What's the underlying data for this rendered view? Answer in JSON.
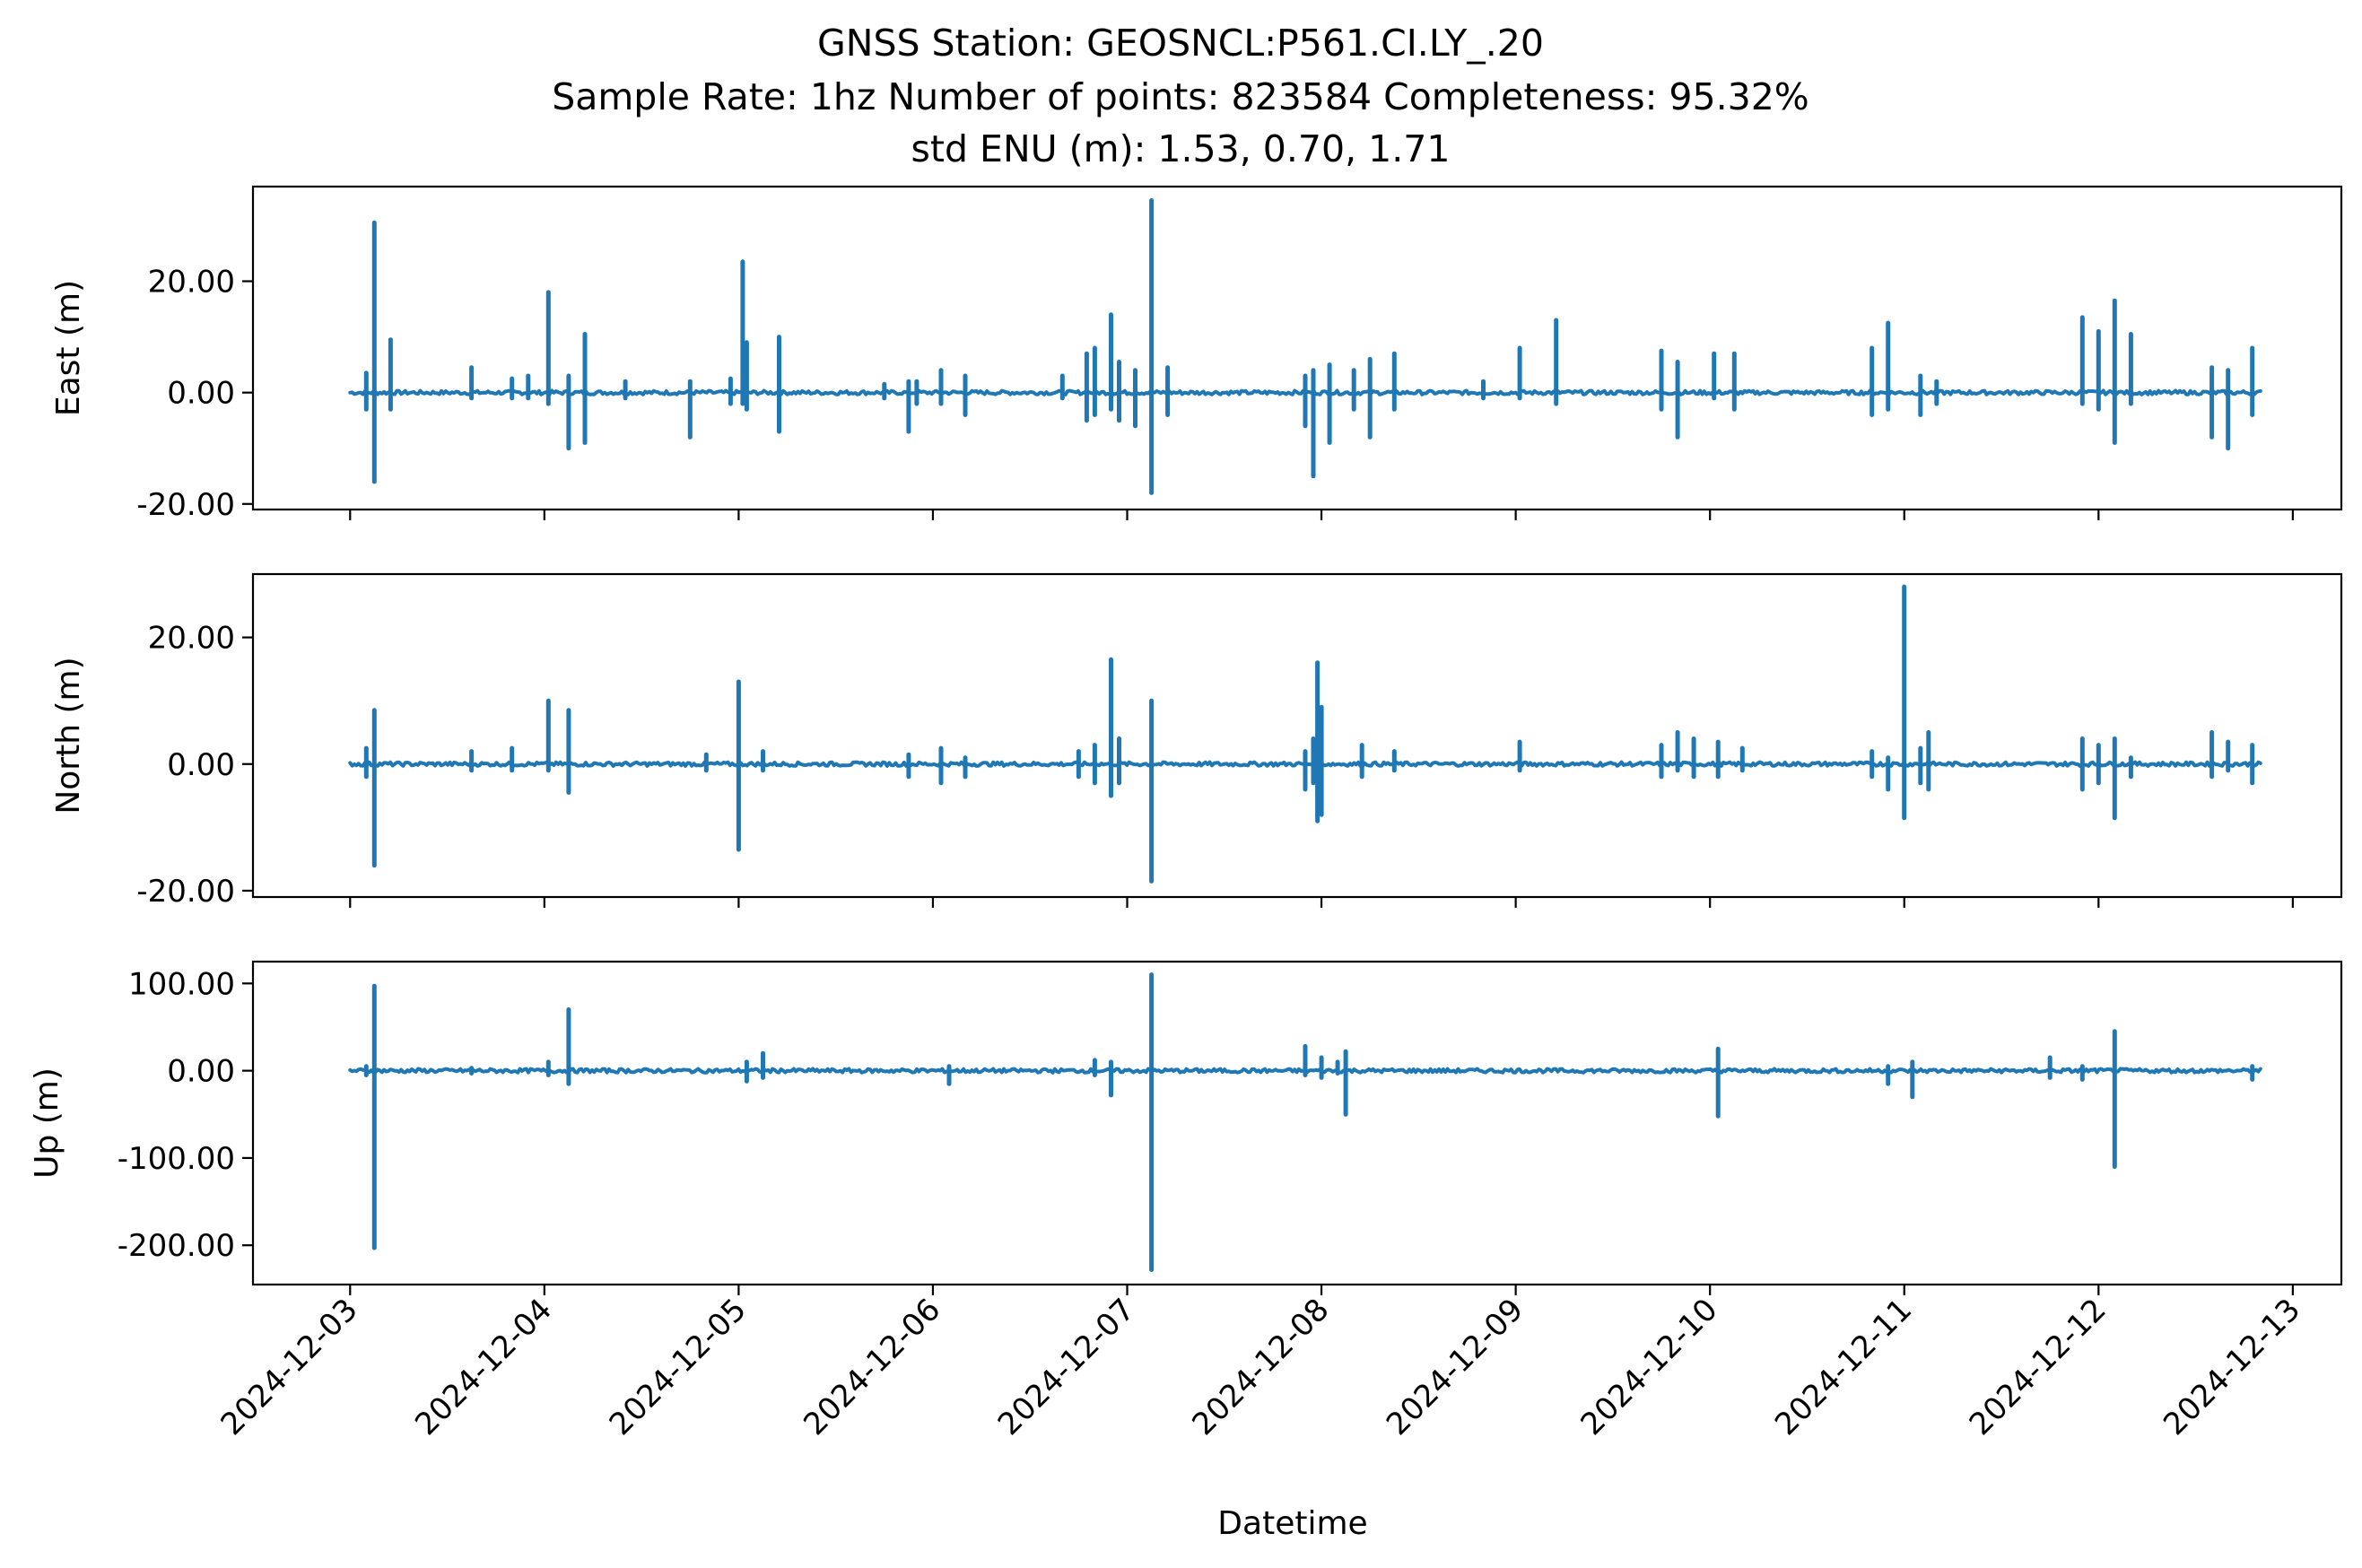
{
  "figure": {
    "title_lines": [
      "GNSS Station: GEOSNCL:P561.CI.LY_.20",
      "Sample Rate: 1hz   Number of points: 823584    Completeness:  95.32%",
      "std ENU (m):  1.53, 0.70, 1.71"
    ],
    "xlabel": "Datetime",
    "line_color": "#1f77b4"
  },
  "chart_data": [
    {
      "type": "line",
      "ylabel": "East (m)",
      "xlim": [
        "2024-12-02T12:00",
        "2024-12-13T06:00"
      ],
      "ylim": [
        -21,
        37
      ],
      "yticks": [
        -20,
        0,
        20
      ],
      "ytick_labels": [
        "-20.00",
        "0.00",
        "20.00"
      ],
      "xticks": [
        "2024-12-03",
        "2024-12-04",
        "2024-12-05",
        "2024-12-06",
        "2024-12-07",
        "2024-12-08",
        "2024-12-09",
        "2024-12-10",
        "2024-12-11",
        "2024-12-12",
        "2024-12-13"
      ],
      "xtick_labels_shown": false,
      "x_range": [
        "2024-12-03T00:00",
        "2024-12-12T20:00"
      ],
      "baseline": 0,
      "spikes": [
        {
          "x": "2024-12-03T02:00",
          "min": -3,
          "max": 3.5
        },
        {
          "x": "2024-12-03T03:00",
          "min": -16,
          "max": 30.5
        },
        {
          "x": "2024-12-03T05:00",
          "min": -3,
          "max": 9.5
        },
        {
          "x": "2024-12-03T15:00",
          "min": -1,
          "max": 4.5
        },
        {
          "x": "2024-12-03T20:00",
          "min": -1,
          "max": 2.5
        },
        {
          "x": "2024-12-03T22:00",
          "min": -1,
          "max": 3
        },
        {
          "x": "2024-12-04T00:30",
          "min": -2,
          "max": 18
        },
        {
          "x": "2024-12-04T03:00",
          "min": -10,
          "max": 3
        },
        {
          "x": "2024-12-04T05:00",
          "min": -9,
          "max": 10.5
        },
        {
          "x": "2024-12-04T23:00",
          "min": -2,
          "max": 2.5
        },
        {
          "x": "2024-12-04T10:00",
          "min": -1,
          "max": 2
        },
        {
          "x": "2024-12-04T18:00",
          "min": -8,
          "max": 2
        },
        {
          "x": "2024-12-05T00:30",
          "min": -2,
          "max": 23.5
        },
        {
          "x": "2024-12-05T01:00",
          "min": -3,
          "max": 9
        },
        {
          "x": "2024-12-05T05:00",
          "min": -7,
          "max": 10
        },
        {
          "x": "2024-12-05T22:00",
          "min": -2,
          "max": 2
        },
        {
          "x": "2024-12-05T18:00",
          "min": -1,
          "max": 1.5
        },
        {
          "x": "2024-12-05T21:00",
          "min": -7,
          "max": 2
        },
        {
          "x": "2024-12-06T01:00",
          "min": -2,
          "max": 4
        },
        {
          "x": "2024-12-06T04:00",
          "min": -4,
          "max": 3
        },
        {
          "x": "2024-12-06T16:00",
          "min": -1,
          "max": 3
        },
        {
          "x": "2024-12-06T19:00",
          "min": -5,
          "max": 7
        },
        {
          "x": "2024-12-06T20:00",
          "min": -4,
          "max": 8
        },
        {
          "x": "2024-12-06T22:00",
          "min": -3,
          "max": 14
        },
        {
          "x": "2024-12-06T23:00",
          "min": -5,
          "max": 5.5
        },
        {
          "x": "2024-12-07T01:00",
          "min": -6,
          "max": 4
        },
        {
          "x": "2024-12-07T03:00",
          "min": -18,
          "max": 34.5
        },
        {
          "x": "2024-12-07T05:00",
          "min": -4,
          "max": 4.5
        },
        {
          "x": "2024-12-07T22:00",
          "min": -6,
          "max": 3
        },
        {
          "x": "2024-12-07T23:00",
          "min": -15,
          "max": 4
        },
        {
          "x": "2024-12-08T01:00",
          "min": -9,
          "max": 5
        },
        {
          "x": "2024-12-08T04:00",
          "min": -3,
          "max": 4
        },
        {
          "x": "2024-12-08T06:00",
          "min": -8,
          "max": 6
        },
        {
          "x": "2024-12-08T09:00",
          "min": -3,
          "max": 7
        },
        {
          "x": "2024-12-08T20:00",
          "min": -1,
          "max": 2
        },
        {
          "x": "2024-12-09T00:30",
          "min": -1,
          "max": 8
        },
        {
          "x": "2024-12-09T05:00",
          "min": -2,
          "max": 13
        },
        {
          "x": "2024-12-09T18:00",
          "min": -3,
          "max": 7.5
        },
        {
          "x": "2024-12-09T20:00",
          "min": -8,
          "max": 5.5
        },
        {
          "x": "2024-12-10T00:30",
          "min": -1,
          "max": 7
        },
        {
          "x": "2024-12-10T03:00",
          "min": -3,
          "max": 7
        },
        {
          "x": "2024-12-10T20:00",
          "min": -4,
          "max": 8
        },
        {
          "x": "2024-12-10T22:00",
          "min": -3,
          "max": 12.5
        },
        {
          "x": "2024-12-11T02:00",
          "min": -4,
          "max": 3
        },
        {
          "x": "2024-12-11T04:00",
          "min": -2,
          "max": 2
        },
        {
          "x": "2024-12-11T22:00",
          "min": -2,
          "max": 13.5
        },
        {
          "x": "2024-12-12T00:00",
          "min": -3,
          "max": 11
        },
        {
          "x": "2024-12-12T02:00",
          "min": -9,
          "max": 16.5
        },
        {
          "x": "2024-12-12T04:00",
          "min": -2,
          "max": 10.5
        },
        {
          "x": "2024-12-12T14:00",
          "min": -8,
          "max": 4.5
        },
        {
          "x": "2024-12-12T16:00",
          "min": -10,
          "max": 4
        },
        {
          "x": "2024-12-12T19:00",
          "min": -4,
          "max": 8
        }
      ]
    },
    {
      "type": "line",
      "ylabel": "North (m)",
      "xlim": [
        "2024-12-02T12:00",
        "2024-12-13T06:00"
      ],
      "ylim": [
        -21,
        30
      ],
      "yticks": [
        -20,
        0,
        20
      ],
      "ytick_labels": [
        "-20.00",
        "0.00",
        "20.00"
      ],
      "xticks": [
        "2024-12-03",
        "2024-12-04",
        "2024-12-05",
        "2024-12-06",
        "2024-12-07",
        "2024-12-08",
        "2024-12-09",
        "2024-12-10",
        "2024-12-11",
        "2024-12-12",
        "2024-12-13"
      ],
      "xtick_labels_shown": false,
      "x_range": [
        "2024-12-03T00:00",
        "2024-12-12T20:00"
      ],
      "baseline": 0,
      "spikes": [
        {
          "x": "2024-12-03T02:00",
          "min": -2,
          "max": 2.5
        },
        {
          "x": "2024-12-03T03:00",
          "min": -16,
          "max": 8.5
        },
        {
          "x": "2024-12-03T15:00",
          "min": -1,
          "max": 2
        },
        {
          "x": "2024-12-03T20:00",
          "min": -1,
          "max": 2.5
        },
        {
          "x": "2024-12-04T00:30",
          "min": -1,
          "max": 10
        },
        {
          "x": "2024-12-04T03:00",
          "min": -4.5,
          "max": 8.5
        },
        {
          "x": "2024-12-04T20:00",
          "min": -1,
          "max": 1.5
        },
        {
          "x": "2024-12-05T00:00",
          "min": -13.5,
          "max": 13
        },
        {
          "x": "2024-12-05T03:00",
          "min": -1,
          "max": 2
        },
        {
          "x": "2024-12-05T21:00",
          "min": -2,
          "max": 1.5
        },
        {
          "x": "2024-12-06T01:00",
          "min": -3,
          "max": 2.5
        },
        {
          "x": "2024-12-06T04:00",
          "min": -2,
          "max": 1
        },
        {
          "x": "2024-12-06T18:00",
          "min": -2,
          "max": 2
        },
        {
          "x": "2024-12-06T20:00",
          "min": -3,
          "max": 3
        },
        {
          "x": "2024-12-06T22:00",
          "min": -5,
          "max": 16.5
        },
        {
          "x": "2024-12-06T23:00",
          "min": -3,
          "max": 4
        },
        {
          "x": "2024-12-07T03:00",
          "min": -18.5,
          "max": 10
        },
        {
          "x": "2024-12-07T22:00",
          "min": -4,
          "max": 2
        },
        {
          "x": "2024-12-07T23:00",
          "min": -3,
          "max": 4
        },
        {
          "x": "2024-12-08T00:00",
          "min": -8,
          "max": 9
        },
        {
          "x": "2024-12-07T23:30",
          "min": -9,
          "max": 16
        },
        {
          "x": "2024-12-08T05:00",
          "min": -2,
          "max": 3
        },
        {
          "x": "2024-12-08T09:00",
          "min": -1,
          "max": 2
        },
        {
          "x": "2024-12-09T00:30",
          "min": -1,
          "max": 3.5
        },
        {
          "x": "2024-12-09T18:00",
          "min": -2,
          "max": 3
        },
        {
          "x": "2024-12-09T20:00",
          "min": -1,
          "max": 5
        },
        {
          "x": "2024-12-09T22:00",
          "min": -2,
          "max": 4
        },
        {
          "x": "2024-12-10T01:00",
          "min": -2,
          "max": 3.5
        },
        {
          "x": "2024-12-10T04:00",
          "min": -1,
          "max": 2.5
        },
        {
          "x": "2024-12-10T20:00",
          "min": -2,
          "max": 2
        },
        {
          "x": "2024-12-10T22:00",
          "min": -4,
          "max": 1
        },
        {
          "x": "2024-12-11T00:00",
          "min": -8.5,
          "max": 28
        },
        {
          "x": "2024-12-11T02:00",
          "min": -3,
          "max": 2.5
        },
        {
          "x": "2024-12-11T03:00",
          "min": -4,
          "max": 5
        },
        {
          "x": "2024-12-11T22:00",
          "min": -4,
          "max": 4
        },
        {
          "x": "2024-12-12T00:00",
          "min": -3,
          "max": 3
        },
        {
          "x": "2024-12-12T02:00",
          "min": -8.5,
          "max": 4
        },
        {
          "x": "2024-12-12T04:00",
          "min": -2,
          "max": 1
        },
        {
          "x": "2024-12-12T14:00",
          "min": -2,
          "max": 5
        },
        {
          "x": "2024-12-12T16:00",
          "min": -1,
          "max": 3.5
        },
        {
          "x": "2024-12-12T19:00",
          "min": -3,
          "max": 3
        }
      ]
    },
    {
      "type": "line",
      "ylabel": "Up (m)",
      "xlim": [
        "2024-12-02T12:00",
        "2024-12-13T06:00"
      ],
      "ylim": [
        -245,
        125
      ],
      "yticks": [
        -200,
        -100,
        0,
        100
      ],
      "ytick_labels": [
        "-200.00",
        "-100.00",
        "0.00",
        "100.00"
      ],
      "xticks": [
        "2024-12-03",
        "2024-12-04",
        "2024-12-05",
        "2024-12-06",
        "2024-12-07",
        "2024-12-08",
        "2024-12-09",
        "2024-12-10",
        "2024-12-11",
        "2024-12-12",
        "2024-12-13"
      ],
      "xtick_labels": [
        "2024-12-03",
        "2024-12-04",
        "2024-12-05",
        "2024-12-06",
        "2024-12-07",
        "2024-12-08",
        "2024-12-09",
        "2024-12-10",
        "2024-12-11",
        "2024-12-12",
        "2024-12-13"
      ],
      "xtick_labels_shown": true,
      "x_range": [
        "2024-12-03T00:00",
        "2024-12-12T20:00"
      ],
      "baseline": 0,
      "spikes": [
        {
          "x": "2024-12-03T02:00",
          "min": -5,
          "max": 5
        },
        {
          "x": "2024-12-03T03:00",
          "min": -203,
          "max": 97
        },
        {
          "x": "2024-12-03T15:00",
          "min": -3,
          "max": 3
        },
        {
          "x": "2024-12-04T00:30",
          "min": -5,
          "max": 10
        },
        {
          "x": "2024-12-04T03:00",
          "min": -15,
          "max": 70
        },
        {
          "x": "2024-12-05T01:00",
          "min": -12,
          "max": 10
        },
        {
          "x": "2024-12-05T03:00",
          "min": -8,
          "max": 20
        },
        {
          "x": "2024-12-06T02:00",
          "min": -15,
          "max": 5
        },
        {
          "x": "2024-12-06T20:00",
          "min": -5,
          "max": 12
        },
        {
          "x": "2024-12-06T22:00",
          "min": -28,
          "max": 10
        },
        {
          "x": "2024-12-07T03:00",
          "min": -228,
          "max": 110
        },
        {
          "x": "2024-12-07T22:00",
          "min": -5,
          "max": 28
        },
        {
          "x": "2024-12-08T00:00",
          "min": -8,
          "max": 15
        },
        {
          "x": "2024-12-08T02:00",
          "min": -3,
          "max": 10
        },
        {
          "x": "2024-12-08T03:00",
          "min": -50,
          "max": 22
        },
        {
          "x": "2024-12-10T01:00",
          "min": -52,
          "max": 25
        },
        {
          "x": "2024-12-10T22:00",
          "min": -15,
          "max": 5
        },
        {
          "x": "2024-12-11T01:00",
          "min": -30,
          "max": 10
        },
        {
          "x": "2024-12-11T18:00",
          "min": -8,
          "max": 15
        },
        {
          "x": "2024-12-11T22:00",
          "min": -10,
          "max": 5
        },
        {
          "x": "2024-12-12T02:00",
          "min": -110,
          "max": 45
        },
        {
          "x": "2024-12-12T19:00",
          "min": -10,
          "max": 5
        }
      ]
    }
  ]
}
